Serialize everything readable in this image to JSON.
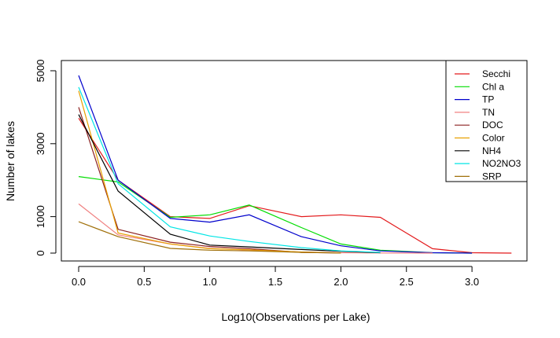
{
  "chart_data": {
    "type": "line",
    "title": "",
    "xlabel": "Log10(Observations per Lake)",
    "ylabel": "Number of lakes",
    "xlim": [
      0,
      3.3
    ],
    "ylim": [
      0,
      5000
    ],
    "x_ticks": [
      0.0,
      0.5,
      1.0,
      1.5,
      2.0,
      2.5,
      3.0
    ],
    "x_tick_labels": [
      "0.0",
      "0.5",
      "1.0",
      "1.5",
      "2.0",
      "2.5",
      "3.0"
    ],
    "y_ticks": [
      0,
      1000,
      3000,
      5000
    ],
    "y_tick_labels": [
      "0",
      "1000",
      "3000",
      "5000"
    ],
    "grid": false,
    "legend_position": "top-right",
    "series": [
      {
        "name": "Secchi",
        "color": "#e31a1c",
        "x": [
          0.0,
          0.301,
          0.699,
          1.0,
          1.301,
          1.699,
          2.0,
          2.301,
          2.699,
          3.0,
          3.301
        ],
        "y": [
          3700,
          2000,
          1000,
          950,
          1300,
          1000,
          1050,
          980,
          120,
          10,
          0
        ]
      },
      {
        "name": "Chl a",
        "color": "#00dd00",
        "x": [
          0.0,
          0.301,
          0.699,
          1.0,
          1.301,
          1.699,
          2.0,
          2.301,
          2.699,
          3.0
        ],
        "y": [
          2100,
          1950,
          980,
          1050,
          1320,
          700,
          250,
          80,
          10,
          0
        ]
      },
      {
        "name": "TP",
        "color": "#0000cc",
        "x": [
          0.0,
          0.301,
          0.699,
          1.0,
          1.301,
          1.699,
          2.0,
          2.301,
          2.699,
          3.0
        ],
        "y": [
          4870,
          2000,
          950,
          850,
          1050,
          450,
          200,
          60,
          10,
          0
        ]
      },
      {
        "name": "TN",
        "color": "#f08080",
        "x": [
          0.0,
          0.301,
          0.699,
          1.0,
          1.301,
          1.699,
          2.0,
          2.301,
          2.699
        ],
        "y": [
          1350,
          500,
          250,
          130,
          80,
          30,
          10,
          5,
          0
        ]
      },
      {
        "name": "DOC",
        "color": "#8b2020",
        "x": [
          0.0,
          0.301,
          0.699,
          1.0,
          1.301,
          1.699,
          2.0
        ],
        "y": [
          4000,
          650,
          300,
          180,
          120,
          20,
          5
        ]
      },
      {
        "name": "Color",
        "color": "#e8a000",
        "x": [
          0.0,
          0.301,
          0.699,
          1.0,
          1.301,
          1.699,
          2.0
        ],
        "y": [
          4450,
          550,
          250,
          120,
          90,
          30,
          5
        ]
      },
      {
        "name": "NH4",
        "color": "#000000",
        "x": [
          0.0,
          0.301,
          0.699,
          1.0,
          1.301,
          1.699,
          2.0,
          2.301
        ],
        "y": [
          3800,
          1700,
          520,
          220,
          170,
          100,
          50,
          10
        ]
      },
      {
        "name": "NO2NO3",
        "color": "#00e5e5",
        "x": [
          0.0,
          0.301,
          0.699,
          1.0,
          1.301,
          1.699,
          2.0,
          2.301
        ],
        "y": [
          4550,
          1900,
          720,
          470,
          320,
          150,
          60,
          20
        ]
      },
      {
        "name": "SRP",
        "color": "#a0700a",
        "x": [
          0.0,
          0.301,
          0.699,
          1.0,
          1.301,
          1.699,
          2.0
        ],
        "y": [
          860,
          450,
          130,
          80,
          60,
          20,
          5
        ]
      }
    ]
  }
}
